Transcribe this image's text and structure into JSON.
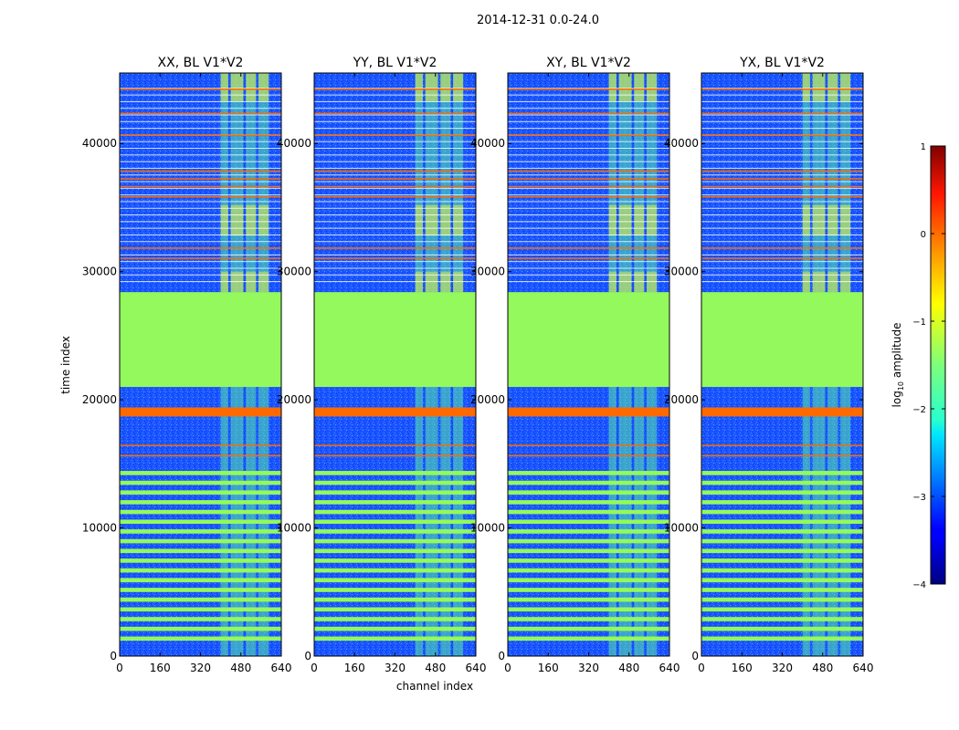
{
  "chart_data": {
    "type": "heatmap",
    "suptitle": "2014-12-31 0.0-24.0",
    "xlabel": "channel index",
    "ylabel": "time index",
    "xlim": [
      0,
      640
    ],
    "ylim": [
      0,
      45500
    ],
    "xticks": [
      0,
      160,
      320,
      480,
      640
    ],
    "yticks": [
      0,
      10000,
      20000,
      30000,
      40000
    ],
    "panels": [
      {
        "title": "XX, BL V1*V2",
        "show_yticks": true
      },
      {
        "title": "YY, BL V1*V2",
        "show_yticks": true
      },
      {
        "title": "XY, BL V1*V2",
        "show_yticks": true
      },
      {
        "title": "YX, BL V1*V2",
        "show_yticks": true
      }
    ],
    "colorbar": {
      "label_prefix": "log",
      "label_sub": "10",
      "label_suffix": " amplitude",
      "vmin": -4,
      "vmax": 1,
      "ticks": [
        1,
        0,
        -1,
        -2,
        -3,
        -4
      ],
      "tick_labels": [
        "1",
        "0",
        "−1",
        "−2",
        "−3",
        "−4"
      ]
    },
    "colors": {
      "flagged_green": "#94f95c",
      "rfi_orange": "#ff6a00",
      "background_blue": "#1c55ff"
    },
    "features": {
      "flagged_block_time": [
        21000,
        28400
      ],
      "orange_band_time": [
        18700,
        19400
      ],
      "active_channel_range": [
        400,
        600
      ],
      "mode": "series"
    }
  }
}
